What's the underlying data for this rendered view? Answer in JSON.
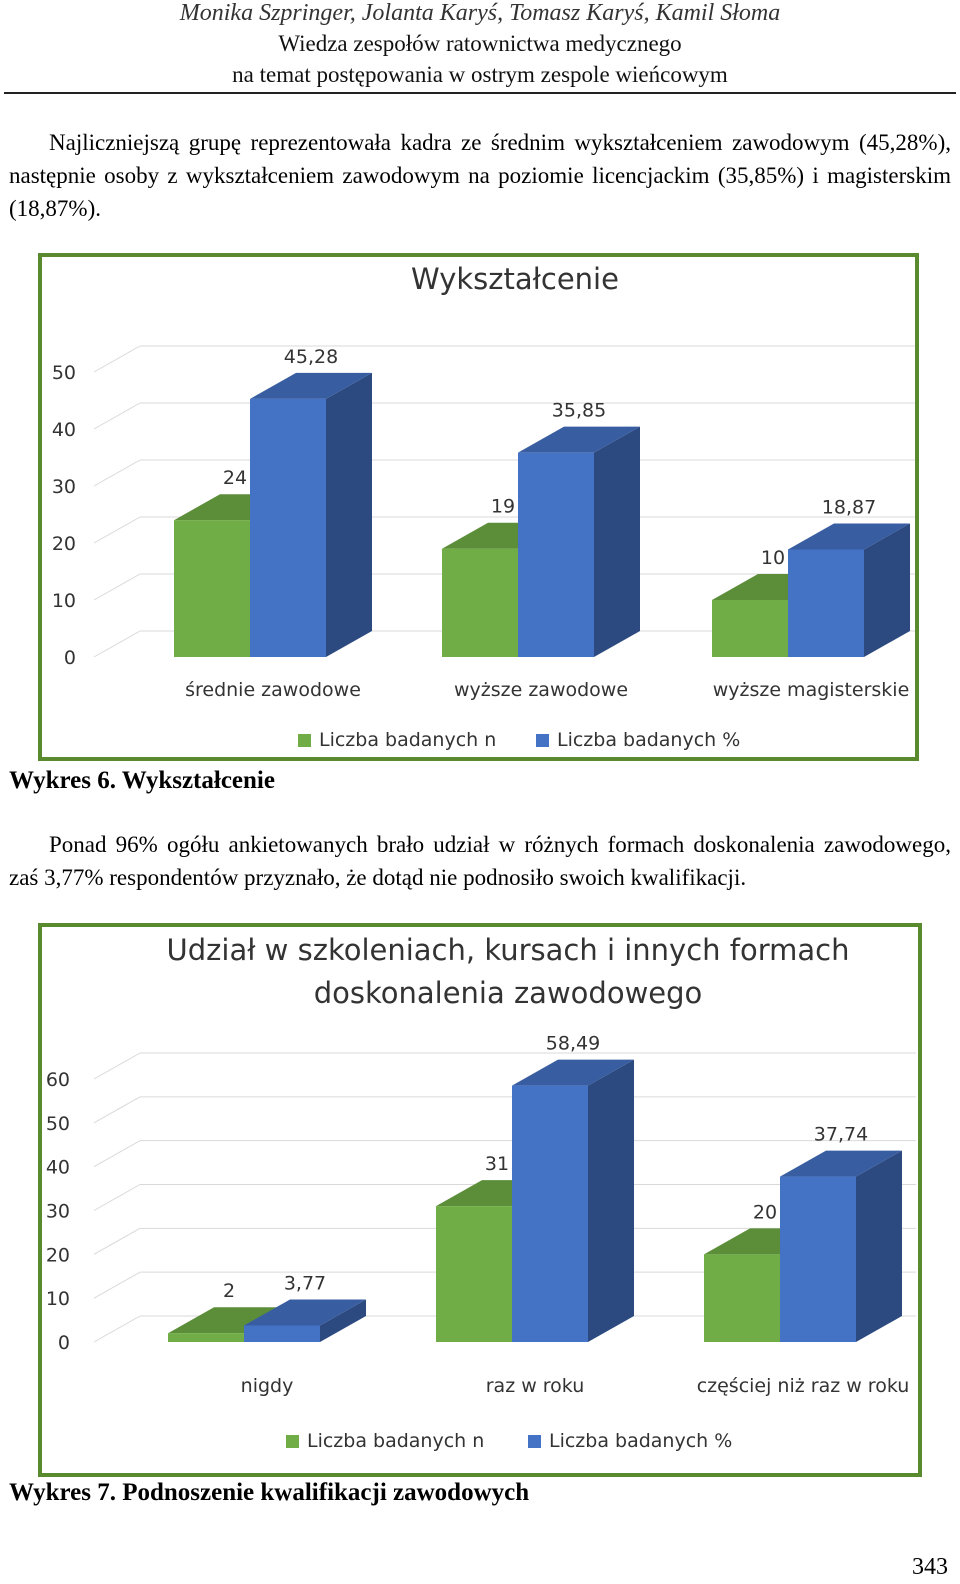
{
  "header": {
    "authors": "Monika Szpringer, Jolanta Karyś, Tomasz Karyś, Kamil Słoma",
    "title_line1": "Wiedza zespołów ratownictwa medycznego",
    "title_line2": "na temat postępowania w ostrym zespole wieńcowym"
  },
  "paragraphs": {
    "p1": "Najliczniejszą grupę reprezentowała kadra ze średnim wykształceniem zawodowym (45,28%), następnie osoby z wykształceniem zawodowym na poziomie licencjackim (35,85%) i magisterskim (18,87%).",
    "p2": "Ponad 96% ogółu ankietowanych brało udział w różnych formach doskonalenia zawodowego, zaś 3,77% respondentów przyznało, że dotąd nie podnosiło swoich kwalifikacji."
  },
  "captions": {
    "chart1": "Wykres 6. Wykształcenie",
    "chart2": "Wykres 7. Podnoszenie kwalifikacji zawodowych"
  },
  "page_number": "343",
  "colors": {
    "green": "#70ad47",
    "blue": "#4472c4",
    "frame": "#5a8a2e"
  },
  "chart_data": [
    {
      "type": "bar",
      "title": "Wykształcenie",
      "categories": [
        "średnie zawodowe",
        "wyższe zawodowe",
        "wyższe magisterskie"
      ],
      "series": [
        {
          "name": "Liczba badanych n",
          "values": [
            24,
            19,
            10
          ],
          "labels": [
            "24",
            "19",
            "10"
          ],
          "color": "#70ad47"
        },
        {
          "name": "Liczba badanych %",
          "values": [
            45.28,
            35.85,
            18.87
          ],
          "labels": [
            "45,28",
            "35,85",
            "18,87"
          ],
          "color": "#4472c4"
        }
      ],
      "ylim": [
        0,
        50
      ],
      "yticks": [
        0,
        10,
        20,
        30,
        40,
        50
      ],
      "legend": "bottom",
      "style": "3d-clustered-column"
    },
    {
      "type": "bar",
      "title": [
        "Udział w szkoleniach, kursach i innych formach",
        "doskonalenia zawodowego"
      ],
      "categories": [
        "nigdy",
        "raz w roku",
        "częściej niż raz w roku"
      ],
      "series": [
        {
          "name": "Liczba badanych n",
          "values": [
            2,
            31,
            20
          ],
          "labels": [
            "2",
            "31",
            "20"
          ],
          "color": "#70ad47"
        },
        {
          "name": "Liczba badanych %",
          "values": [
            3.77,
            58.49,
            37.74
          ],
          "labels": [
            "3,77",
            "58,49",
            "37,74"
          ],
          "color": "#4472c4"
        }
      ],
      "ylim": [
        0,
        60
      ],
      "yticks": [
        0,
        10,
        20,
        30,
        40,
        50,
        60
      ],
      "legend": "bottom",
      "style": "3d-clustered-column"
    }
  ]
}
